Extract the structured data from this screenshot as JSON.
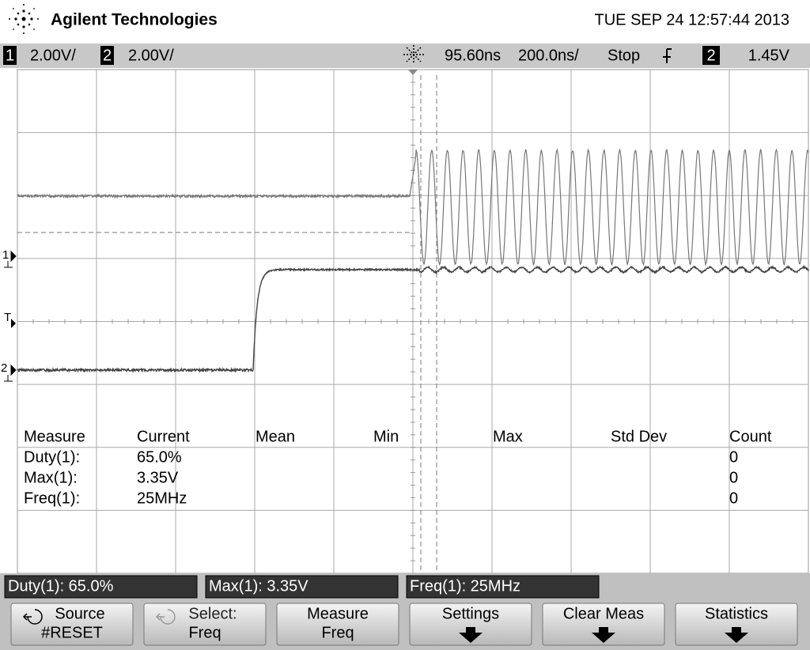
{
  "header": {
    "brand": "Agilent Technologies",
    "datetime": "TUE SEP 24 12:57:44 2013"
  },
  "status_bar": {
    "ch1_number": "1",
    "ch1_scale": "2.00V/",
    "ch2_number": "2",
    "ch2_scale": "2.00V/",
    "delay": "95.60ns",
    "timebase": "200.0ns/",
    "run_state": "Stop",
    "trigger_source": "2",
    "trigger_level": "1.45V"
  },
  "markers": {
    "ch1": "1",
    "trigger": "T",
    "ch2": "2"
  },
  "measure_table": {
    "headers": [
      "Measure",
      "Current",
      "Mean",
      "Min",
      "Max",
      "Std Dev",
      "Count"
    ],
    "rows": [
      {
        "name": "Duty(1):",
        "current": "65.0%",
        "count": "0"
      },
      {
        "name": "Max(1):",
        "current": "3.35V",
        "count": "0"
      },
      {
        "name": "Freq(1):",
        "current": "25MHz",
        "count": "0"
      }
    ]
  },
  "measure_bar": [
    "Duty(1): 65.0%",
    "Max(1): 3.35V",
    "Freq(1): 25MHz"
  ],
  "softkeys": [
    {
      "label": "Source",
      "sub": "#RESET"
    },
    {
      "label": "Select:",
      "sub": "Freq"
    },
    {
      "label": "Measure",
      "sub": "Freq"
    },
    {
      "label": "Settings"
    },
    {
      "label": "Clear Meas"
    },
    {
      "label": "Statistics"
    }
  ]
}
